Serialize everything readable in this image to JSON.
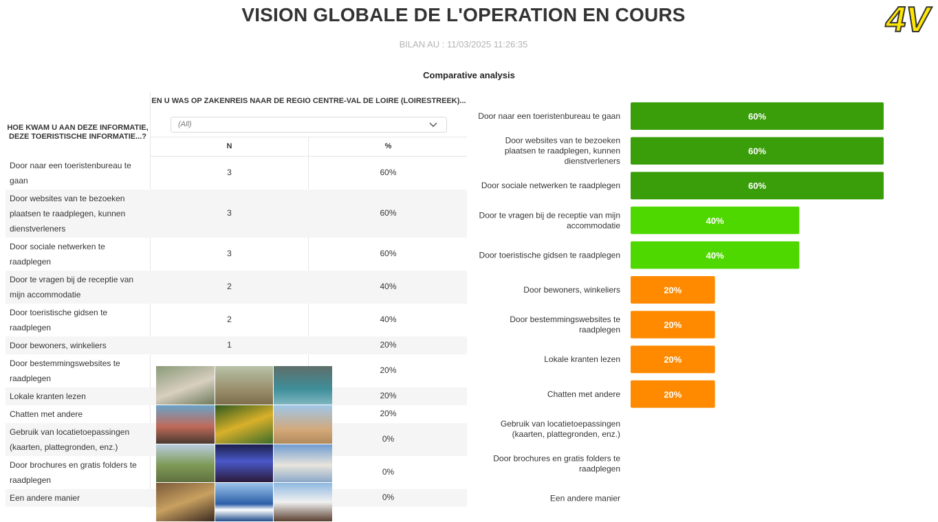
{
  "header": {
    "title": "VISION GLOBALE DE L'OPERATION EN COURS",
    "subtitle": "BILAN AU : 11/03/2025 11:26:35",
    "logo_text": "4V"
  },
  "section_title": "Comparative analysis",
  "table": {
    "question_header": "HOE KWAM U AAN DEZE INFORMATIE, DEZE TOERISTISCHE INFORMATIE...?",
    "group_header": "EN U WAS OP ZAKENREIS NAAR DE REGIO CENTRE-VAL DE LOIRE (LOIRESTREEK)...",
    "filter_value": "(All)",
    "col_n": "N",
    "col_pct": "%",
    "rows": [
      {
        "label": "Door naar een toeristenbureau te gaan",
        "n": "3",
        "pct": "60%"
      },
      {
        "label": "Door websites van te bezoeken plaatsen te raadplegen, kunnen dienstverleners",
        "n": "3",
        "pct": "60%"
      },
      {
        "label": "Door sociale netwerken te raadplegen",
        "n": "3",
        "pct": "60%"
      },
      {
        "label": "Door te vragen bij de receptie van mijn accommodatie",
        "n": "2",
        "pct": "40%"
      },
      {
        "label": "Door toeristische gidsen te raadplegen",
        "n": "2",
        "pct": "40%"
      },
      {
        "label": "Door bewoners, winkeliers",
        "n": "1",
        "pct": "20%"
      },
      {
        "label": "Door bestemmingswebsites te raadplegen",
        "n": "",
        "pct": "20%"
      },
      {
        "label": "Lokale kranten lezen",
        "n": "",
        "pct": "20%"
      },
      {
        "label": "Chatten met andere",
        "n": "",
        "pct": "20%"
      },
      {
        "label": "Gebruik van locatietoepassingen (kaarten, plattegronden, enz.)",
        "n": "",
        "pct": "0%"
      },
      {
        "label": "Door brochures en gratis folders te raadplegen",
        "n": "",
        "pct": "0%"
      },
      {
        "label": "Een andere manier",
        "n": "",
        "pct": "0%"
      }
    ]
  },
  "chart_data": {
    "type": "bar",
    "orientation": "horizontal",
    "title": "Comparative analysis",
    "categories": [
      "Door naar een toeristenbureau te gaan",
      "Door websites van te bezoeken plaatsen te raadplegen, kunnen dienstverleners",
      "Door sociale netwerken te raadplegen",
      "Door te vragen bij de receptie van mijn accommodatie",
      "Door toeristische gidsen te raadplegen",
      "Door bewoners, winkeliers",
      "Door bestemmingswebsites te raadplegen",
      "Lokale kranten lezen",
      "Chatten met andere",
      "Gebruik van locatietoepassingen (kaarten, plattegronden, enz.)",
      "Door brochures en gratis folders te raadplegen",
      "Een andere manier"
    ],
    "values": [
      60,
      60,
      60,
      40,
      40,
      20,
      20,
      20,
      20,
      0,
      0,
      0
    ],
    "value_labels": [
      "60%",
      "60%",
      "60%",
      "40%",
      "40%",
      "20%",
      "20%",
      "20%",
      "20%",
      "",
      "",
      ""
    ],
    "category_lines": [
      [
        "Door naar een toeristenbureau te gaan"
      ],
      [
        "Door websites van te bezoeken",
        "plaatsen te raadplegen, kunnen",
        "dienstverleners"
      ],
      [
        "Door sociale netwerken te raadplegen"
      ],
      [
        "Door te vragen bij de receptie van mijn",
        "accommodatie"
      ],
      [
        "Door toeristische gidsen te raadplegen"
      ],
      [
        "Door bewoners, winkeliers"
      ],
      [
        "Door bestemmingswebsites te",
        "raadplegen"
      ],
      [
        "Lokale kranten lezen"
      ],
      [
        "Chatten met andere"
      ],
      [
        "Gebruik van locatietoepassingen",
        "(kaarten, plattegronden, enz.)"
      ],
      [
        "Door brochures en gratis folders te",
        "raadplegen"
      ],
      [
        "Een andere manier"
      ]
    ],
    "xlim": [
      0,
      60
    ],
    "grid": false,
    "colors": {
      "60": "#3a9e0a",
      "40": "#4fd800",
      "20": "#ff8a00"
    }
  }
}
